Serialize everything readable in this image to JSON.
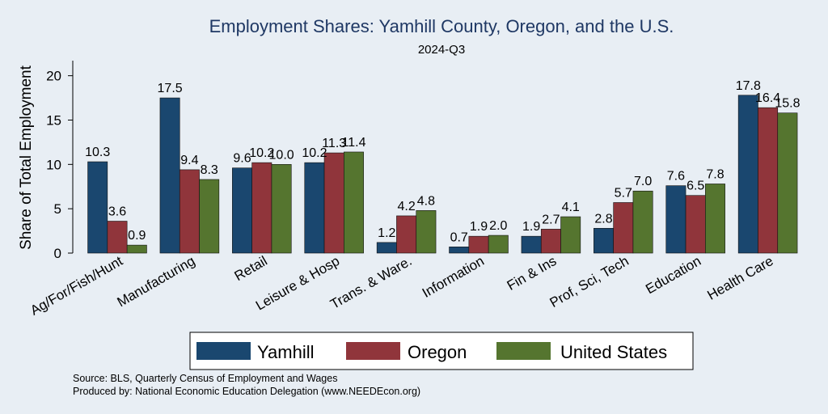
{
  "chart_data": {
    "type": "bar",
    "title": "Employment Shares: Yamhill County, Oregon, and the U.S.",
    "subtitle": "2024-Q3",
    "xlabel": "",
    "ylabel": "Share of Total Employment",
    "ylim": [
      0,
      21.7
    ],
    "yticks": [
      0,
      5,
      10,
      15,
      20
    ],
    "categories": [
      "Ag/For/Fish/Hunt",
      "Manufacturing",
      "Retail",
      "Leisure & Hosp",
      "Trans. & Ware.",
      "Information",
      "Fin & Ins",
      "Prof, Sci, Tech",
      "Education",
      "Health Care"
    ],
    "series": [
      {
        "name": "Yamhill",
        "color": "#1a476f",
        "values": [
          10.3,
          17.5,
          9.6,
          10.2,
          1.2,
          0.7,
          1.9,
          2.8,
          7.6,
          17.8
        ],
        "labels": [
          "10.3",
          "17.5",
          "9.6",
          "10.2",
          "1.2",
          "0.7",
          "1.9",
          "2.8",
          "7.6",
          "17.8"
        ]
      },
      {
        "name": "Oregon",
        "color": "#90353b",
        "values": [
          3.6,
          9.4,
          10.2,
          11.3,
          4.2,
          1.9,
          2.7,
          5.7,
          6.5,
          16.4
        ],
        "labels": [
          "3.6",
          "9.4",
          "10.2",
          "11.3",
          "4.2",
          "1.9",
          "2.7",
          "5.7",
          "6.5",
          "16.4"
        ]
      },
      {
        "name": "United States",
        "color": "#55752f",
        "values": [
          0.9,
          8.3,
          10.0,
          11.4,
          4.8,
          2.0,
          4.1,
          7.0,
          7.8,
          15.8
        ],
        "labels": [
          "0.9",
          "8.3",
          "10.0",
          "11.4",
          "4.8",
          "2.0",
          "4.1",
          "7.0",
          "7.8",
          "15.8"
        ]
      }
    ],
    "legend_position": "bottom"
  },
  "source_lines": [
    "Source: BLS, Quarterly Census of Employment and Wages",
    "Produced by: National Economic Education Delegation (www.NEEDEcon.org)"
  ]
}
